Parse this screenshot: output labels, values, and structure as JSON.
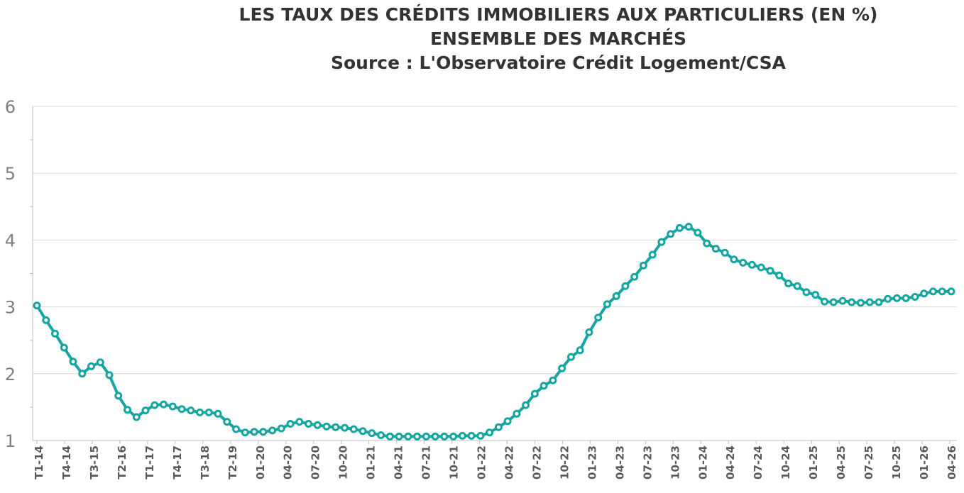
{
  "chart_data": {
    "type": "line",
    "title": "LES TAUX DES CRÉDITS IMMOBILIERS AUX PARTICULIERS (EN %)",
    "subtitle": "ENSEMBLE DES MARCHÉS",
    "source": "Source : L'Observatoire Crédit Logement/CSA",
    "xlabel": "",
    "ylabel": "",
    "ylim": [
      1,
      6
    ],
    "yticks": [
      "1",
      "2",
      "3",
      "4",
      "5",
      "6"
    ],
    "grid": true,
    "legend": "none",
    "color": "#16a5a0",
    "x_tick_labels": [
      "T1-14",
      "T4-14",
      "T3-15",
      "T2-16",
      "T1-17",
      "T4-17",
      "T3-18",
      "T2-19",
      "01-20",
      "04-20",
      "07-20",
      "10-20",
      "01-21",
      "04-21",
      "07-21",
      "10-21",
      "01-22",
      "04-22",
      "07-22",
      "10-22",
      "01-23",
      "04-23",
      "07-23",
      "10-23",
      "01-24",
      "04-24",
      "07-24",
      "10-24",
      "01-25",
      "04-25",
      "07-25",
      "10-25",
      "01-26",
      "04-26"
    ],
    "series": [
      {
        "values": [
          3.02,
          2.8,
          2.6,
          2.39,
          2.18,
          2.0,
          2.11,
          2.17,
          1.98,
          1.67,
          1.46,
          1.35,
          1.45,
          1.53,
          1.54,
          1.51,
          1.47,
          1.45,
          1.42,
          1.42,
          1.4,
          1.28,
          1.17,
          1.12,
          1.13,
          1.13,
          1.15,
          1.18,
          1.25,
          1.28,
          1.25,
          1.23,
          1.21,
          1.2,
          1.19,
          1.17,
          1.14,
          1.11,
          1.08,
          1.06,
          1.06,
          1.06,
          1.06,
          1.06,
          1.06,
          1.06,
          1.06,
          1.07,
          1.07,
          1.07,
          1.12,
          1.2,
          1.29,
          1.4,
          1.53,
          1.7,
          1.82,
          1.9,
          2.08,
          2.25,
          2.35,
          2.62,
          2.84,
          3.04,
          3.16,
          3.31,
          3.45,
          3.62,
          3.78,
          3.97,
          4.09,
          4.18,
          4.2,
          4.11,
          3.95,
          3.87,
          3.81,
          3.71,
          3.66,
          3.63,
          3.59,
          3.54,
          3.47,
          3.35,
          3.31,
          3.22,
          3.18,
          3.08,
          3.07,
          3.09,
          3.07,
          3.06,
          3.07,
          3.07,
          3.12,
          3.13,
          3.13,
          3.15,
          3.2,
          3.23,
          3.23,
          3.23
        ]
      }
    ]
  }
}
